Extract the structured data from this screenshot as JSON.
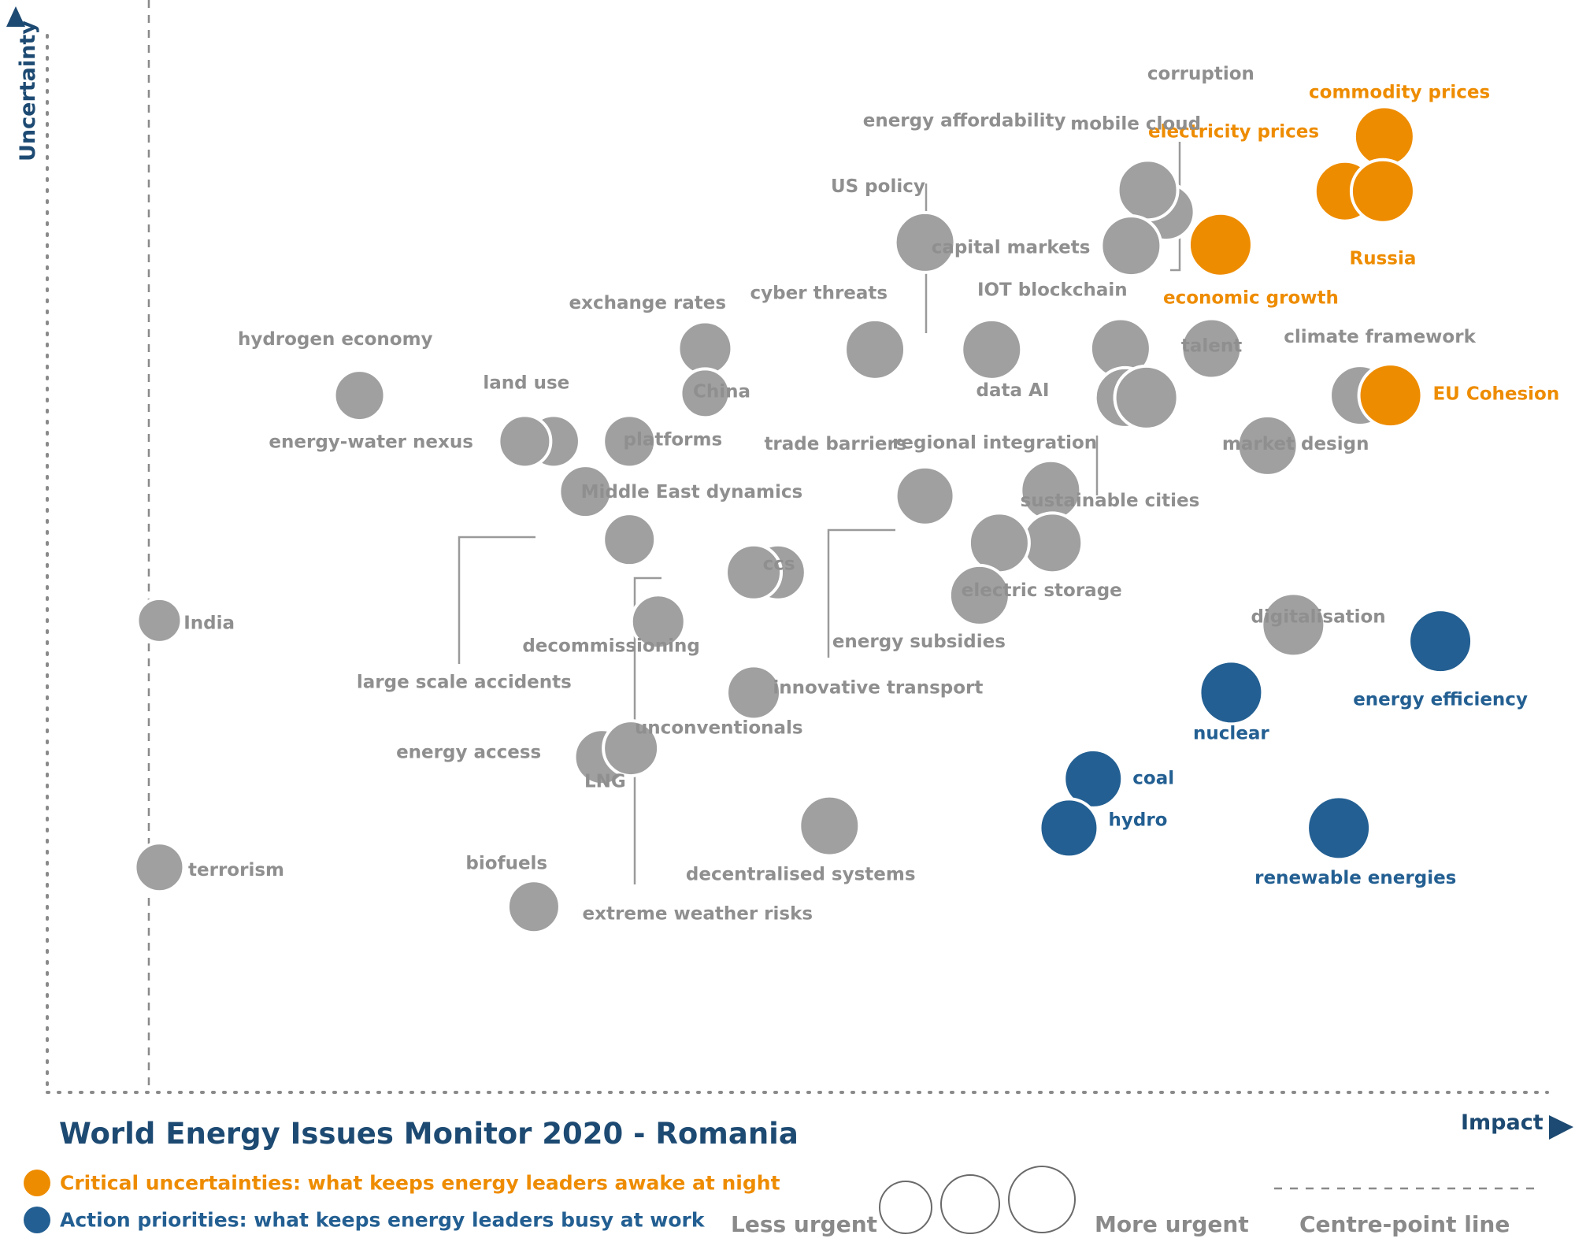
{
  "title": "World Energy Issues Monitor 2020 - Romania",
  "axis": {
    "x_label": "Impact",
    "y_label": "Uncertainty"
  },
  "legend": {
    "critical": {
      "text": "Critical uncertainties: what keeps energy leaders awake at night",
      "color": "#ee8c00"
    },
    "action": {
      "text": "Action priorities: what keeps energy leaders busy at work",
      "color": "#235f92"
    },
    "less_urgent": "Less urgent",
    "more_urgent": "More urgent",
    "centre_line": "Centre-point  line"
  },
  "colors": {
    "grey": "#a0a0a0",
    "orange": "#ee8c00",
    "blue": "#235f92",
    "axis": "#8a8a8a"
  },
  "chart_data": {
    "type": "scatter",
    "xlabel": "Impact",
    "ylabel": "Uncertainty",
    "xlim": [
      0,
      1
    ],
    "ylim": [
      0,
      1
    ],
    "centre_line_x": 0.067,
    "series": [
      {
        "name": "Critical uncertainties",
        "color": "orange"
      },
      {
        "name": "Action priorities",
        "color": "blue"
      }
    ],
    "points": [
      {
        "name": "commodity prices",
        "x": 0.882,
        "y": 0.875,
        "size": 38,
        "group": "orange"
      },
      {
        "name": "electricity prices",
        "x": 0.856,
        "y": 0.825,
        "size": 38,
        "group": "orange"
      },
      {
        "name": "Russia",
        "x": 0.881,
        "y": 0.825,
        "size": 40,
        "group": "orange"
      },
      {
        "name": "economic growth",
        "x": 0.774,
        "y": 0.776,
        "size": 40,
        "group": "orange"
      },
      {
        "name": "climate framework",
        "x": 0.866,
        "y": 0.638,
        "size": 38,
        "group": "grey"
      },
      {
        "name": "EU Cohesion",
        "x": 0.886,
        "y": 0.638,
        "size": 40,
        "group": "orange"
      },
      {
        "name": "energy efficiency",
        "x": 0.919,
        "y": 0.413,
        "size": 40,
        "group": "blue"
      },
      {
        "name": "nuclear",
        "x": 0.781,
        "y": 0.366,
        "size": 40,
        "group": "blue"
      },
      {
        "name": "coal",
        "x": 0.69,
        "y": 0.287,
        "size": 37,
        "group": "blue"
      },
      {
        "name": "hydro",
        "x": 0.674,
        "y": 0.242,
        "size": 37,
        "group": "blue"
      },
      {
        "name": "renewable energies",
        "x": 0.852,
        "y": 0.242,
        "size": 40,
        "group": "blue"
      },
      {
        "name": "corruption",
        "x": 0.738,
        "y": 0.806,
        "size": 36,
        "group": "grey"
      },
      {
        "name": "mobile cloud",
        "x": 0.726,
        "y": 0.826,
        "size": 38,
        "group": "grey"
      },
      {
        "name": "capital markets",
        "x": 0.715,
        "y": 0.775,
        "size": 38,
        "group": "grey"
      },
      {
        "name": "energy affordability",
        "x": 0.623,
        "y": 0.68,
        "size": 38,
        "group": "grey"
      },
      {
        "name": "US policy",
        "x": 0.579,
        "y": 0.778,
        "size": 38,
        "group": "grey"
      },
      {
        "name": "cyber threats",
        "x": 0.546,
        "y": 0.68,
        "size": 38,
        "group": "grey"
      },
      {
        "name": "IOT",
        "x": 0.708,
        "y": 0.681,
        "size": 38,
        "group": "grey"
      },
      {
        "name": "blockchain",
        "x": 0.768,
        "y": 0.681,
        "size": 38,
        "group": "grey"
      },
      {
        "name": "talent",
        "x": 0.768,
        "y": 0.681,
        "size": 38,
        "group": "grey"
      },
      {
        "name": "data",
        "x": 0.711,
        "y": 0.636,
        "size": 38,
        "group": "grey"
      },
      {
        "name": "AI",
        "x": 0.725,
        "y": 0.636,
        "size": 40,
        "group": "grey"
      },
      {
        "name": "sustainable cities",
        "x": 0.725,
        "y": 0.636,
        "size": 40,
        "group": "grey"
      },
      {
        "name": "market design",
        "x": 0.805,
        "y": 0.592,
        "size": 38,
        "group": "grey"
      },
      {
        "name": "trade barriers",
        "x": 0.579,
        "y": 0.546,
        "size": 37,
        "group": "grey"
      },
      {
        "name": "regional integration",
        "x": 0.662,
        "y": 0.551,
        "size": 38,
        "group": "grey"
      },
      {
        "name": "electric storage",
        "x": 0.663,
        "y": 0.503,
        "size": 38,
        "group": "grey"
      },
      {
        "name": "innovative transport",
        "x": 0.628,
        "y": 0.503,
        "size": 38,
        "group": "grey"
      },
      {
        "name": "energy subsidies",
        "x": 0.615,
        "y": 0.455,
        "size": 38,
        "group": "grey"
      },
      {
        "name": "digitalisation",
        "x": 0.822,
        "y": 0.428,
        "size": 40,
        "group": "grey"
      },
      {
        "name": "exchange rates",
        "x": 0.434,
        "y": 0.681,
        "size": 34,
        "group": "grey"
      },
      {
        "name": "China",
        "x": 0.434,
        "y": 0.64,
        "size": 31,
        "group": "grey"
      },
      {
        "name": "hydrogen economy",
        "x": 0.206,
        "y": 0.638,
        "size": 32,
        "group": "grey"
      },
      {
        "name": "land use",
        "x": 0.334,
        "y": 0.596,
        "size": 33,
        "group": "grey"
      },
      {
        "name": "energy-water nexus",
        "x": 0.315,
        "y": 0.596,
        "size": 33,
        "group": "grey"
      },
      {
        "name": "platforms",
        "x": 0.384,
        "y": 0.596,
        "size": 33,
        "group": "grey"
      },
      {
        "name": "Middle East dynamics",
        "x": 0.355,
        "y": 0.55,
        "size": 33,
        "group": "grey"
      },
      {
        "name": "large scale accidents",
        "x": 0.384,
        "y": 0.506,
        "size": 33,
        "group": "grey"
      },
      {
        "name": "ccs",
        "x": 0.482,
        "y": 0.476,
        "size": 35,
        "group": "grey"
      },
      {
        "name": "extreme weather risks",
        "x": 0.466,
        "y": 0.476,
        "size": 35,
        "group": "grey"
      },
      {
        "name": "decommissioning",
        "x": 0.403,
        "y": 0.431,
        "size": 34,
        "group": "grey"
      },
      {
        "name": "unconventionals",
        "x": 0.466,
        "y": 0.366,
        "size": 34,
        "group": "grey"
      },
      {
        "name": "energy access",
        "x": 0.366,
        "y": 0.307,
        "size": 35,
        "group": "grey"
      },
      {
        "name": "LNG",
        "x": 0.385,
        "y": 0.315,
        "size": 35,
        "group": "grey"
      },
      {
        "name": "decentralised systems",
        "x": 0.516,
        "y": 0.244,
        "size": 38,
        "group": "grey"
      },
      {
        "name": "biofuels",
        "x": 0.321,
        "y": 0.17,
        "size": 33,
        "group": "grey"
      },
      {
        "name": "India",
        "x": 0.074,
        "y": 0.432,
        "size": 28,
        "group": "grey"
      },
      {
        "name": "terrorism",
        "x": 0.074,
        "y": 0.206,
        "size": 31,
        "group": "grey"
      }
    ],
    "labels": [
      {
        "text": "commodity prices",
        "x": 0.892,
        "y": 0.916,
        "group": "orange",
        "anchor": "middle"
      },
      {
        "text": "electricity prices",
        "x": 0.839,
        "y": 0.88,
        "group": "orange",
        "anchor": "end"
      },
      {
        "text": "Russia",
        "x": 0.881,
        "y": 0.764,
        "group": "orange",
        "anchor": "middle"
      },
      {
        "text": "economic growth",
        "x": 0.794,
        "y": 0.728,
        "group": "orange",
        "anchor": "middle"
      },
      {
        "text": "EU Cohesion",
        "x": 0.914,
        "y": 0.64,
        "group": "orange",
        "anchor": "start"
      },
      {
        "text": "energy efficiency",
        "x": 0.919,
        "y": 0.36,
        "group": "blue",
        "anchor": "middle"
      },
      {
        "text": "nuclear",
        "x": 0.781,
        "y": 0.329,
        "group": "blue",
        "anchor": "middle"
      },
      {
        "text": "coal",
        "x": 0.716,
        "y": 0.288,
        "group": "blue",
        "anchor": "start"
      },
      {
        "text": "hydro",
        "x": 0.7,
        "y": 0.25,
        "group": "blue",
        "anchor": "start"
      },
      {
        "text": "renewable energies",
        "x": 0.863,
        "y": 0.197,
        "group": "blue",
        "anchor": "middle"
      },
      {
        "text": "corruption",
        "x": 0.761,
        "y": 0.933,
        "group": "grey",
        "anchor": "middle"
      },
      {
        "text": "mobile cloud",
        "x": 0.718,
        "y": 0.887,
        "group": "grey",
        "anchor": "middle"
      },
      {
        "text": "capital markets",
        "x": 0.688,
        "y": 0.774,
        "group": "grey",
        "anchor": "end"
      },
      {
        "text": "energy affordability",
        "x": 0.605,
        "y": 0.89,
        "group": "grey",
        "anchor": "middle"
      },
      {
        "text": "US policy",
        "x": 0.548,
        "y": 0.83,
        "group": "grey",
        "anchor": "middle"
      },
      {
        "text": "cyber threats",
        "x": 0.509,
        "y": 0.732,
        "group": "grey",
        "anchor": "middle"
      },
      {
        "text": "IOT blockchain",
        "x": 0.663,
        "y": 0.735,
        "group": "grey",
        "anchor": "middle"
      },
      {
        "text": "talent",
        "x": 0.748,
        "y": 0.684,
        "group": "grey",
        "anchor": "start"
      },
      {
        "text": "climate framework",
        "x": 0.879,
        "y": 0.692,
        "group": "grey",
        "anchor": "middle"
      },
      {
        "text": "data AI",
        "x": 0.661,
        "y": 0.643,
        "group": "grey",
        "anchor": "end"
      },
      {
        "text": "market design",
        "x": 0.775,
        "y": 0.594,
        "group": "grey",
        "anchor": "start"
      },
      {
        "text": "regional integration",
        "x": 0.625,
        "y": 0.595,
        "group": "grey",
        "anchor": "middle"
      },
      {
        "text": "trade barriers",
        "x": 0.52,
        "y": 0.594,
        "group": "grey",
        "anchor": "middle"
      },
      {
        "text": "sustainable cities",
        "x": 0.701,
        "y": 0.542,
        "group": "grey",
        "anchor": "middle"
      },
      {
        "text": "electric storage",
        "x": 0.603,
        "y": 0.46,
        "group": "grey",
        "anchor": "start"
      },
      {
        "text": "energy subsidies",
        "x": 0.575,
        "y": 0.413,
        "group": "grey",
        "anchor": "middle"
      },
      {
        "text": "digitalisation",
        "x": 0.794,
        "y": 0.436,
        "group": "grey",
        "anchor": "start"
      },
      {
        "text": "innovative transport",
        "x": 0.548,
        "y": 0.371,
        "group": "grey",
        "anchor": "middle"
      },
      {
        "text": "exchange rates",
        "x": 0.396,
        "y": 0.723,
        "group": "grey",
        "anchor": "middle"
      },
      {
        "text": "China",
        "x": 0.426,
        "y": 0.642,
        "group": "grey",
        "anchor": "start"
      },
      {
        "text": "hydrogen economy",
        "x": 0.19,
        "y": 0.69,
        "group": "grey",
        "anchor": "middle"
      },
      {
        "text": "land use",
        "x": 0.316,
        "y": 0.65,
        "group": "grey",
        "anchor": "middle"
      },
      {
        "text": "energy-water nexus",
        "x": 0.281,
        "y": 0.596,
        "group": "grey",
        "anchor": "end"
      },
      {
        "text": "platforms",
        "x": 0.38,
        "y": 0.598,
        "group": "grey",
        "anchor": "start"
      },
      {
        "text": "Middle East dynamics",
        "x": 0.352,
        "y": 0.55,
        "group": "grey",
        "anchor": "start"
      },
      {
        "text": "ccs",
        "x": 0.472,
        "y": 0.484,
        "group": "grey",
        "anchor": "start"
      },
      {
        "text": "decommissioning",
        "x": 0.372,
        "y": 0.409,
        "group": "grey",
        "anchor": "middle"
      },
      {
        "text": "large scale accidents",
        "x": 0.275,
        "y": 0.376,
        "group": "grey",
        "anchor": "middle"
      },
      {
        "text": "unconventionals",
        "x": 0.443,
        "y": 0.334,
        "group": "grey",
        "anchor": "middle"
      },
      {
        "text": "energy access",
        "x": 0.278,
        "y": 0.312,
        "group": "grey",
        "anchor": "middle"
      },
      {
        "text": "LNG",
        "x": 0.368,
        "y": 0.285,
        "group": "grey",
        "anchor": "middle"
      },
      {
        "text": "decentralised systems",
        "x": 0.497,
        "y": 0.2,
        "group": "grey",
        "anchor": "middle"
      },
      {
        "text": "biofuels",
        "x": 0.303,
        "y": 0.21,
        "group": "grey",
        "anchor": "middle"
      },
      {
        "text": "extreme weather risks",
        "x": 0.429,
        "y": 0.164,
        "group": "grey",
        "anchor": "middle"
      },
      {
        "text": "India",
        "x": 0.09,
        "y": 0.43,
        "group": "grey",
        "anchor": "start"
      },
      {
        "text": "terrorism",
        "x": 0.093,
        "y": 0.204,
        "group": "grey",
        "anchor": "start"
      }
    ]
  }
}
